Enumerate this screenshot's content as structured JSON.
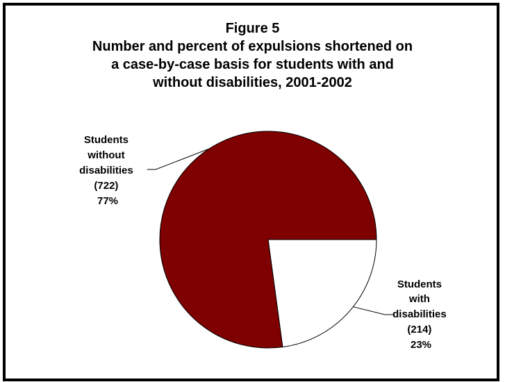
{
  "chart_data": {
    "type": "pie",
    "title": "Figure 5",
    "subtitle_lines": [
      "Number and percent of expulsions shortened on",
      "a case-by-case basis for students with and",
      "without disabilities, 2001-2002"
    ],
    "slices": [
      {
        "label_lines": [
          "Students",
          "with",
          "disabilities"
        ],
        "count_text": "(214)",
        "percent_text": "23%",
        "value": 214,
        "percent": 23,
        "color": "#ffffff"
      },
      {
        "label_lines": [
          "Students",
          "without",
          "disabilities"
        ],
        "count_text": "(722)",
        "percent_text": "77%",
        "value": 722,
        "percent": 77,
        "color": "#7f0000"
      }
    ],
    "start_angle": "90 degrees (pointing right/east), slices drawn clockwise",
    "legend": "none"
  }
}
